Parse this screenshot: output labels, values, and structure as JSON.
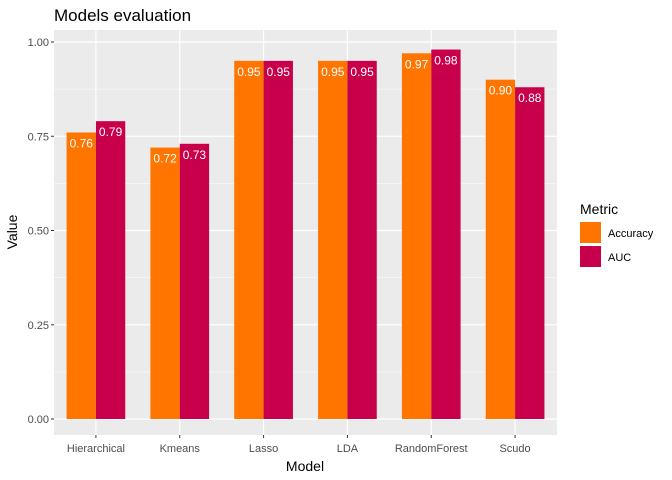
{
  "chart_data": {
    "type": "bar",
    "title": "Models evaluation",
    "xlabel": "Model",
    "ylabel": "Value",
    "ylim": [
      0,
      1.04
    ],
    "yticks": [
      "0.00",
      "0.25",
      "0.50",
      "0.75",
      "1.00"
    ],
    "ytick_values": [
      0,
      0.25,
      0.5,
      0.75,
      1.0
    ],
    "categories": [
      "Hierarchical",
      "Kmeans",
      "Lasso",
      "LDA",
      "RandomForest",
      "Scudo"
    ],
    "series": [
      {
        "name": "Accuracy",
        "color": "#ff7500",
        "values": [
          0.76,
          0.72,
          0.95,
          0.95,
          0.97,
          0.9
        ],
        "labels": [
          "0.76",
          "0.72",
          "0.95",
          "0.95",
          "0.97",
          "0.90"
        ]
      },
      {
        "name": "AUC",
        "color": "#c8004b",
        "values": [
          0.79,
          0.73,
          0.95,
          0.95,
          0.98,
          0.88
        ],
        "labels": [
          "0.79",
          "0.73",
          "0.95",
          "0.95",
          "0.98",
          "0.88"
        ]
      }
    ],
    "legend": {
      "title": "Metric",
      "position": "right"
    },
    "grid": true,
    "panel_background": "#ebebeb",
    "gridline_color": "#ffffff"
  }
}
